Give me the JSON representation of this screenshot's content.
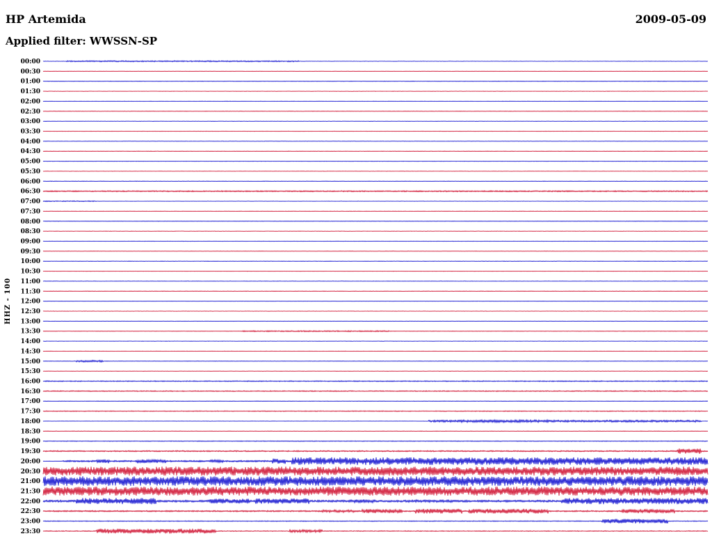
{
  "header": {
    "station": "HP Artemida",
    "date": "2009-05-09",
    "filter": "Applied filter: WWSSN-SP"
  },
  "y_axis_label": "HHZ - 100",
  "chart_data": {
    "type": "line",
    "subtype": "helicorder",
    "title": "HP Artemida helicorder 2009-05-09, channel HHZ, gain 100, filter WWSSN-SP",
    "row_interval_minutes": 30,
    "legend_position": "none",
    "grid": false,
    "colors": {
      "even_row": "#0000cc",
      "odd_row": "#cc0022"
    },
    "amplitude_unit": "px",
    "rows": [
      {
        "label": "00:00",
        "activity": [
          [
            0.035,
            0.385,
            0.9
          ]
        ]
      },
      {
        "label": "00:30",
        "activity": []
      },
      {
        "label": "01:00",
        "activity": []
      },
      {
        "label": "01:30",
        "activity": []
      },
      {
        "label": "02:00",
        "activity": []
      },
      {
        "label": "02:30",
        "activity": []
      },
      {
        "label": "03:00",
        "activity": []
      },
      {
        "label": "03:30",
        "activity": []
      },
      {
        "label": "04:00",
        "activity": []
      },
      {
        "label": "04:30",
        "activity": []
      },
      {
        "label": "05:00",
        "activity": []
      },
      {
        "label": "05:30",
        "activity": []
      },
      {
        "label": "06:00",
        "activity": []
      },
      {
        "label": "06:30",
        "activity": [
          [
            0.0,
            1.0,
            0.9
          ]
        ]
      },
      {
        "label": "07:00",
        "activity": [
          [
            0.0,
            0.08,
            0.7
          ]
        ]
      },
      {
        "label": "07:30",
        "activity": []
      },
      {
        "label": "08:00",
        "activity": []
      },
      {
        "label": "08:30",
        "activity": []
      },
      {
        "label": "09:00",
        "activity": []
      },
      {
        "label": "09:30",
        "activity": []
      },
      {
        "label": "10:00",
        "activity": []
      },
      {
        "label": "10:30",
        "activity": []
      },
      {
        "label": "11:00",
        "activity": []
      },
      {
        "label": "11:30",
        "activity": []
      },
      {
        "label": "12:00",
        "activity": []
      },
      {
        "label": "12:30",
        "activity": []
      },
      {
        "label": "13:00",
        "activity": []
      },
      {
        "label": "13:30",
        "activity": [
          [
            0.3,
            0.52,
            0.9
          ]
        ]
      },
      {
        "label": "14:00",
        "activity": []
      },
      {
        "label": "14:30",
        "activity": []
      },
      {
        "label": "15:00",
        "activity": [
          [
            0.05,
            0.09,
            1.4
          ]
        ]
      },
      {
        "label": "15:30",
        "activity": []
      },
      {
        "label": "16:00",
        "activity": [
          [
            0.0,
            1.0,
            0.7
          ]
        ]
      },
      {
        "label": "16:30",
        "activity": [
          [
            0.0,
            1.0,
            0.7
          ]
        ]
      },
      {
        "label": "17:00",
        "activity": []
      },
      {
        "label": "17:30",
        "activity": [
          [
            0.0,
            1.0,
            0.6
          ]
        ]
      },
      {
        "label": "18:00",
        "activity": [
          [
            0.58,
            0.99,
            1.6
          ],
          [
            0.62,
            0.76,
            2.0
          ]
        ]
      },
      {
        "label": "18:30",
        "activity": []
      },
      {
        "label": "19:00",
        "activity": [
          [
            0.0,
            1.0,
            0.5
          ]
        ]
      },
      {
        "label": "19:30",
        "activity": [
          [
            0.0,
            1.0,
            0.9
          ],
          [
            0.955,
            0.99,
            4.0
          ]
        ]
      },
      {
        "label": "20:00",
        "activity": [
          [
            0.03,
            0.374,
            1.2
          ],
          [
            0.08,
            0.1,
            3.0
          ],
          [
            0.14,
            0.185,
            3.0
          ],
          [
            0.25,
            0.27,
            2.5
          ],
          [
            0.345,
            0.365,
            4.0
          ],
          [
            0.374,
            1.0,
            5.5
          ]
        ]
      },
      {
        "label": "20:30",
        "activity": [
          [
            0.0,
            1.0,
            6.5
          ]
        ]
      },
      {
        "label": "21:00",
        "activity": [
          [
            0.0,
            1.0,
            7.0
          ]
        ]
      },
      {
        "label": "21:30",
        "activity": [
          [
            0.0,
            1.0,
            6.5
          ]
        ]
      },
      {
        "label": "22:00",
        "activity": [
          [
            0.0,
            1.0,
            1.5
          ],
          [
            0.05,
            0.17,
            4.5
          ],
          [
            0.25,
            0.31,
            3.5
          ],
          [
            0.32,
            0.4,
            4.0
          ],
          [
            0.46,
            0.5,
            2.5
          ],
          [
            0.55,
            0.62,
            2.0
          ],
          [
            0.78,
            1.0,
            4.5
          ]
        ]
      },
      {
        "label": "22:30",
        "activity": [
          [
            0.0,
            1.0,
            1.0
          ],
          [
            0.42,
            0.47,
            2.0
          ],
          [
            0.48,
            0.54,
            3.0
          ],
          [
            0.56,
            0.63,
            3.5
          ],
          [
            0.64,
            0.76,
            3.5
          ],
          [
            0.87,
            0.95,
            3.0
          ]
        ]
      },
      {
        "label": "23:00",
        "activity": [
          [
            0.0,
            1.0,
            0.6
          ],
          [
            0.84,
            0.94,
            3.2
          ]
        ]
      },
      {
        "label": "23:30",
        "activity": [
          [
            0.0,
            1.0,
            0.6
          ],
          [
            0.08,
            0.26,
            3.5
          ],
          [
            0.37,
            0.42,
            2.2
          ]
        ]
      }
    ]
  }
}
